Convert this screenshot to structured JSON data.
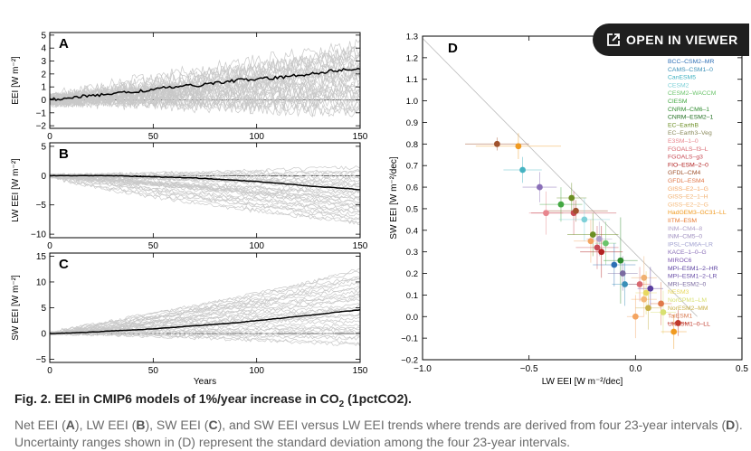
{
  "viewer_button": {
    "label": "OPEN IN VIEWER",
    "icon": "open-external-icon"
  },
  "caption": {
    "title_prefix": "Fig. 2. EEI in CMIP6 models of 1%/year increase in CO",
    "title_sub": "2",
    "title_suffix": " (1pctCO2).",
    "body": [
      {
        "t": "Net EEI ("
      },
      {
        "b": "A"
      },
      {
        "t": "), LW EEI ("
      },
      {
        "b": "B"
      },
      {
        "t": "), SW EEI ("
      },
      {
        "b": "C"
      },
      {
        "t": "), and SW EEI versus LW EEI trends where trends are derived from four 23-year intervals ("
      },
      {
        "b": "D"
      },
      {
        "t": "). Uncertainty ranges shown in (D) represent the standard deviation among the four 23-year intervals."
      }
    ]
  },
  "chart_data": [
    {
      "type": "line",
      "panel": "A",
      "ylabel": "EEI [W m⁻²]",
      "xlim": [
        0,
        150
      ],
      "ylim": [
        -2.2,
        5.2
      ],
      "yticks": [
        -2,
        -1,
        0,
        1,
        2,
        3,
        4,
        5
      ],
      "xticks": [
        0,
        50,
        100,
        150
      ],
      "xticklabels": [
        "0",
        "50",
        "100",
        "150"
      ],
      "mean_x": [
        0,
        10,
        20,
        30,
        40,
        50,
        60,
        70,
        80,
        90,
        100,
        110,
        120,
        130,
        140,
        150
      ],
      "mean_y": [
        0.0,
        0.2,
        0.3,
        0.5,
        0.6,
        0.8,
        1.0,
        1.1,
        1.3,
        1.5,
        1.6,
        1.7,
        1.9,
        2.1,
        2.3,
        2.4
      ],
      "ensemble_spread": [
        -1.0,
        4.5
      ],
      "ensemble_color": "#c8c8c8",
      "mean_color": "#000000"
    },
    {
      "type": "line",
      "panel": "B",
      "ylabel": "LW EEI [W m⁻²]",
      "xlim": [
        0,
        150
      ],
      "ylim": [
        -10.6,
        5.6
      ],
      "yticks": [
        -10,
        -5,
        0,
        5
      ],
      "xticks": [
        0,
        50,
        100,
        150
      ],
      "xticklabels": [
        "0",
        "50",
        "100",
        "150"
      ],
      "mean_x": [
        0,
        10,
        20,
        30,
        40,
        50,
        60,
        70,
        80,
        90,
        100,
        110,
        120,
        130,
        140,
        150
      ],
      "mean_y": [
        0.0,
        0.0,
        0.0,
        0.0,
        -0.1,
        -0.2,
        -0.3,
        -0.4,
        -0.6,
        -0.8,
        -1.0,
        -1.3,
        -1.6,
        -1.9,
        -2.1,
        -2.4
      ],
      "ensemble_spread": [
        -8.5,
        2.0
      ],
      "ensemble_color": "#c8c8c8",
      "mean_color": "#000000"
    },
    {
      "type": "line",
      "panel": "C",
      "ylabel": "SW EEI [W m⁻²]",
      "xlabel": "Years",
      "xlim": [
        0,
        150
      ],
      "ylim": [
        -5.6,
        15.6
      ],
      "yticks": [
        -5,
        0,
        5,
        10,
        15
      ],
      "xticks": [
        0,
        50,
        100,
        150
      ],
      "xticklabels": [
        "0",
        "50",
        "100",
        "150"
      ],
      "mean_x": [
        0,
        10,
        20,
        30,
        40,
        50,
        60,
        70,
        80,
        90,
        100,
        110,
        120,
        130,
        140,
        150
      ],
      "mean_y": [
        0.0,
        0.1,
        0.3,
        0.5,
        0.7,
        0.9,
        1.2,
        1.5,
        1.8,
        2.1,
        2.5,
        2.9,
        3.3,
        3.7,
        4.2,
        4.6
      ],
      "ensemble_spread": [
        -2.5,
        13.5
      ],
      "ensemble_color": "#c8c8c8",
      "mean_color": "#000000"
    },
    {
      "type": "scatter",
      "panel": "D",
      "xlabel": "LW EEI [W m⁻²/dec]",
      "ylabel": "SW EEI [W m⁻²/dec]",
      "xlim": [
        -1.0,
        0.5
      ],
      "ylim": [
        -0.2,
        1.3
      ],
      "xticks": [
        -1.0,
        -0.5,
        0.0,
        0.5
      ],
      "xticklabels": [
        "−1.0",
        "−0.5",
        "0.0",
        "0.5"
      ],
      "yticks": [
        -0.2,
        -0.1,
        0.0,
        0.1,
        0.2,
        0.3,
        0.4,
        0.5,
        0.6,
        0.7,
        0.8,
        0.9,
        1.0,
        1.1,
        1.2,
        1.3
      ],
      "yticklabels": [
        "−0.2",
        "−0.1",
        "0.0",
        "0.1",
        "0.2",
        "0.3",
        "0.4",
        "0.5",
        "0.6",
        "0.7",
        "0.8",
        "0.9",
        "1.0",
        "1.1",
        "1.2",
        "1.3"
      ],
      "reference_line": {
        "x": [
          -1.0,
          0.29
        ],
        "y": [
          1.29,
          0.0
        ],
        "color": "#bbbbbb"
      },
      "models": [
        {
          "name": "BCC–CSM2–MR",
          "color": "#2e6fb5"
        },
        {
          "name": "CAMS–CSM1–0",
          "color": "#3a8fb7"
        },
        {
          "name": "CanESM5",
          "color": "#45b3c2"
        },
        {
          "name": "CESM2",
          "color": "#7ed0d8"
        },
        {
          "name": "CESM2–WACCM",
          "color": "#6cc46c"
        },
        {
          "name": "CIESM",
          "color": "#43a843"
        },
        {
          "name": "CNRM–CM6–1",
          "color": "#2e8b2e"
        },
        {
          "name": "CNRM–ESM2–1",
          "color": "#1f6e1f"
        },
        {
          "name": "EC–EarthB",
          "color": "#6b8e23"
        },
        {
          "name": "EC–Earth3–Veg",
          "color": "#8a8a5c"
        },
        {
          "name": "E3SM–1–0",
          "color": "#e8868e"
        },
        {
          "name": "FGOALS–f3–L",
          "color": "#d86870"
        },
        {
          "name": "FGOALS–g3",
          "color": "#c84b55"
        },
        {
          "name": "FIO–ESM–2–0",
          "color": "#b22222"
        },
        {
          "name": "GFDL–CM4",
          "color": "#a0522d"
        },
        {
          "name": "GFDL–ESM4",
          "color": "#e0784a"
        },
        {
          "name": "GISS–E2–1–G",
          "color": "#f4a460"
        },
        {
          "name": "GISS–E2–1–H",
          "color": "#f0b070"
        },
        {
          "name": "GISS–E2–2–G",
          "color": "#f5b878"
        },
        {
          "name": "HadGEM3–GC31–LL",
          "color": "#f09a20"
        },
        {
          "name": "IITM–ESM",
          "color": "#e87a30"
        },
        {
          "name": "INM–CM4–8",
          "color": "#b0a0c8"
        },
        {
          "name": "INM–CM5–0",
          "color": "#a090c0"
        },
        {
          "name": "IPSL–CM6A–LR",
          "color": "#9f9fcf"
        },
        {
          "name": "KACE–1–0–G",
          "color": "#8a6fb8"
        },
        {
          "name": "MIROC6",
          "color": "#7b56b0"
        },
        {
          "name": "MPI–ESM1–2–HR",
          "color": "#5a3fa0"
        },
        {
          "name": "MPI–ESM1–2–LR",
          "color": "#6a4fa8"
        },
        {
          "name": "MRI–ESM2–0",
          "color": "#7a6aa0"
        },
        {
          "name": "NESM3",
          "color": "#e8d860"
        },
        {
          "name": "NorCPM1–LM",
          "color": "#d8e070"
        },
        {
          "name": "NorESM2–MM",
          "color": "#c8b048"
        },
        {
          "name": "TaiESM1",
          "color": "#d87a50"
        },
        {
          "name": "UKESM1–0–LL",
          "color": "#c0392b"
        }
      ],
      "points": [
        {
          "x": -0.65,
          "y": 0.8,
          "ex": 0.15,
          "ey": 0.03,
          "color": "#a0522d"
        },
        {
          "x": -0.55,
          "y": 0.79,
          "ex": 0.2,
          "ey": 0.06,
          "color": "#f09a20"
        },
        {
          "x": -0.53,
          "y": 0.68,
          "ex": 0.09,
          "ey": 0.06,
          "color": "#45b3c2"
        },
        {
          "x": -0.45,
          "y": 0.6,
          "ex": 0.08,
          "ey": 0.07,
          "color": "#8a6fb8"
        },
        {
          "x": -0.42,
          "y": 0.48,
          "ex": 0.08,
          "ey": 0.1,
          "color": "#e8868e"
        },
        {
          "x": -0.35,
          "y": 0.52,
          "ex": 0.1,
          "ey": 0.08,
          "color": "#43a843"
        },
        {
          "x": -0.3,
          "y": 0.55,
          "ex": 0.07,
          "ey": 0.07,
          "color": "#6b8e23"
        },
        {
          "x": -0.29,
          "y": 0.48,
          "ex": 0.2,
          "ey": 0.1,
          "color": "#c84b55"
        },
        {
          "x": -0.28,
          "y": 0.49,
          "ex": 0.15,
          "ey": 0.05,
          "color": "#a0522d"
        },
        {
          "x": -0.24,
          "y": 0.45,
          "ex": 0.12,
          "ey": 0.1,
          "color": "#7ed0d8"
        },
        {
          "x": -0.2,
          "y": 0.38,
          "ex": 0.12,
          "ey": 0.1,
          "color": "#6b8e23"
        },
        {
          "x": -0.21,
          "y": 0.35,
          "ex": 0.08,
          "ey": 0.1,
          "color": "#f4a460"
        },
        {
          "x": -0.18,
          "y": 0.32,
          "ex": 0.1,
          "ey": 0.1,
          "color": "#c84b55"
        },
        {
          "x": -0.17,
          "y": 0.36,
          "ex": 0.06,
          "ey": 0.08,
          "color": "#b0a0c8"
        },
        {
          "x": -0.14,
          "y": 0.34,
          "ex": 0.05,
          "ey": 0.1,
          "color": "#6cc46c"
        },
        {
          "x": -0.16,
          "y": 0.3,
          "ex": 0.1,
          "ey": 0.12,
          "color": "#b22222"
        },
        {
          "x": -0.1,
          "y": 0.24,
          "ex": 0.1,
          "ey": 0.1,
          "color": "#2e6fb5"
        },
        {
          "x": -0.07,
          "y": 0.26,
          "ex": 0.08,
          "ey": 0.2,
          "color": "#2e8b2e"
        },
        {
          "x": -0.06,
          "y": 0.2,
          "ex": 0.07,
          "ey": 0.08,
          "color": "#7a6aa0"
        },
        {
          "x": -0.05,
          "y": 0.15,
          "ex": 0.06,
          "ey": 0.1,
          "color": "#3a8fb7"
        },
        {
          "x": 0.02,
          "y": 0.15,
          "ex": 0.05,
          "ey": 0.08,
          "color": "#d86870"
        },
        {
          "x": 0.04,
          "y": 0.18,
          "ex": 0.06,
          "ey": 0.1,
          "color": "#f0b070"
        },
        {
          "x": 0.05,
          "y": 0.11,
          "ex": 0.05,
          "ey": 0.1,
          "color": "#e8d860"
        },
        {
          "x": 0.07,
          "y": 0.13,
          "ex": 0.06,
          "ey": 0.1,
          "color": "#5a3fa0"
        },
        {
          "x": 0.04,
          "y": 0.08,
          "ex": 0.06,
          "ey": 0.08,
          "color": "#f5b878"
        },
        {
          "x": 0.06,
          "y": 0.04,
          "ex": 0.06,
          "ey": 0.1,
          "color": "#c8b048"
        },
        {
          "x": 0.0,
          "y": 0.0,
          "ex": 0.04,
          "ey": 0.1,
          "color": "#f4a460"
        },
        {
          "x": 0.12,
          "y": 0.06,
          "ex": 0.05,
          "ey": 0.1,
          "color": "#e0784a"
        },
        {
          "x": 0.13,
          "y": 0.02,
          "ex": 0.06,
          "ey": 0.1,
          "color": "#d8e070"
        },
        {
          "x": 0.2,
          "y": -0.03,
          "ex": 0.05,
          "ey": 0.06,
          "color": "#c0392b"
        },
        {
          "x": 0.18,
          "y": -0.07,
          "ex": 0.06,
          "ey": 0.08,
          "color": "#f09a20"
        }
      ]
    }
  ]
}
